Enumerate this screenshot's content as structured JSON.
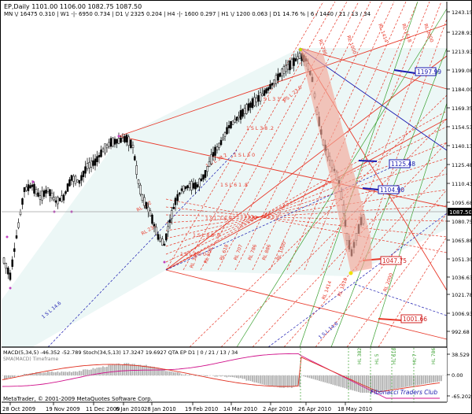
{
  "header": {
    "line1": "EP,Daily  1101.00 1106.00 1082.75 1087.50",
    "line2": "MN \\/ 16475  0.310  |  W1 -|- 6950  0.734  |  D1 \\/ 2325  0.204  |  H4 -|- 1600  0.297  |  H1 \\/ 1200  0.063  |  D1  14.76 %  |  6 / 1440 / 21 / 13 / 34"
  },
  "price_axis": {
    "ticks": [
      "1243.15",
      "1228.93",
      "1213.93",
      "1199.08",
      "1184.00",
      "1169.35",
      "1154.53",
      "1140.13",
      "1125.48",
      "1110.43",
      "1095.68",
      "1080.75",
      "1065.88",
      "1051.30",
      "1036.63",
      "1021.78",
      "1006.93",
      "992.68"
    ],
    "current": "1087.50"
  },
  "date_axis": {
    "ticks": [
      "28 Oct 2009",
      "19 Nov 2009",
      "11 Dec 2009",
      "6 Jan 2010",
      "28 Jan 2010",
      "19 Feb 2010",
      "14 Mar 2010",
      "2 Apr 2010",
      "26 Apr 2010",
      "18 May 2010"
    ]
  },
  "price_boxes": {
    "b1": "1197.99",
    "b2": "1125.48",
    "b3": "1104.90",
    "b4": "1047.75",
    "b5": "1001.66"
  },
  "fan_labels": {
    "fib_lines": [
      "1 S L 3 3 .6",
      "1 S L 3 8 .2",
      "1 S L 5 0",
      "1 S L 6 1 .8",
      "1 S L 7 8 .6",
      "1 S L 8 8 .6",
      "1 S L 1 0 0"
    ],
    "rl_lines": [
      "RL 382",
      "RL 500",
      "RL 618",
      "RL 707",
      "RL 786",
      "RL 886",
      "RL 1000",
      "RL 1414",
      "RL 1618",
      "RL 2000"
    ],
    "top_labels": [
      "RL 2000",
      "RL 1618",
      "RL 1414",
      "RL 1000",
      "RL 786"
    ],
    "left_labels": [
      "1 S L 38.2",
      "RL 382",
      "RL 236"
    ],
    "misc": [
      "1 S L 14.6",
      "1 S L 23.6",
      "1 S L 14.6"
    ]
  },
  "indicator": {
    "header": "MACD(5,34,5) -46.352 -52.789  Stoch(34,5,13) 17.3247 19.6927  QTA EP D1 | 0 / 21 / 13 / 34",
    "sub": "SMA(MACD) Timeframe",
    "ticks": [
      "38.529",
      "0.00",
      "-65.202"
    ],
    "copyright": "MetaTrader, © 2001-2009 MetaQuotes Software Corp.",
    "club": "Fibonacci Traders Club",
    "vlabels": [
      "HL 382",
      "HL 5",
      "HL 618",
      "HL 7",
      "HL 786"
    ]
  },
  "colors": {
    "fan": "#e8392a",
    "fan_band": "#f4b0a4",
    "blue": "#1a1ab0",
    "green": "#3aa030",
    "macd_bar": "#b0b0b0",
    "stoch": "#d0108a",
    "signal": "#e03020"
  }
}
